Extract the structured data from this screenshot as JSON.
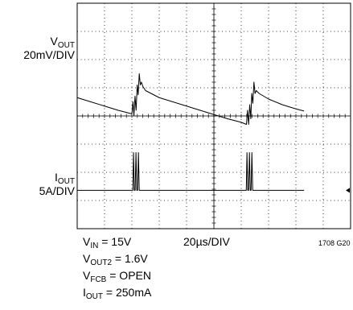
{
  "chart_data": {
    "type": "line",
    "title": "",
    "xlabel": "",
    "ylabel": "",
    "grid": true,
    "time_per_div": "20µs/DIV",
    "horizontal_divisions": 10,
    "vertical_divisions": 8,
    "x_unit": "µs",
    "xlim": [
      0,
      200
    ],
    "series": [
      {
        "name": "V_OUT",
        "scale": "20mV/DIV",
        "unit": "mV",
        "ylim": [
          -80,
          80
        ],
        "label_main": "V",
        "label_sub": "OUT",
        "label_scale": "20mV/DIV",
        "x": [
          0,
          10,
          20,
          30,
          40,
          40.8,
          41.5,
          42.3,
          43.1,
          43.9,
          44.6,
          45.4,
          46.2,
          47,
          48,
          50,
          60,
          70,
          80,
          90,
          100,
          110,
          120,
          123.8,
          124.6,
          125.4,
          126.2,
          127,
          127.7,
          128.5,
          129.3,
          130.1,
          131,
          133,
          140,
          150,
          160,
          166
        ],
        "y": [
          13,
          10,
          7,
          4,
          1.5,
          10,
          0,
          14,
          4,
          22,
          15,
          30,
          22,
          24,
          21,
          18,
          13,
          10,
          7,
          4,
          1,
          -2,
          -4.5,
          -6,
          4,
          -6,
          8,
          -2,
          16,
          9,
          24,
          16,
          18,
          16,
          12,
          8,
          5,
          3.5
        ]
      },
      {
        "name": "I_OUT",
        "scale": "5A/DIV",
        "unit": "A",
        "ylim": [
          -20,
          20
        ],
        "label_main": "I",
        "label_sub": "OUT",
        "label_scale": "5A/DIV",
        "x": [
          0,
          40.7,
          41.2,
          41.8,
          42.4,
          43.0,
          43.6,
          44.2,
          44.8,
          45.4,
          46.0,
          46.6,
          47.2,
          120,
          123.7,
          124.2,
          124.8,
          125.4,
          126.0,
          126.6,
          127.2,
          127.8,
          128.4,
          129.0,
          129.6,
          130.2,
          166
        ],
        "y": [
          -13.2,
          -13.2,
          -6.5,
          -13.2,
          -13.2,
          -6.5,
          -13.2,
          -13.2,
          -6.5,
          -13.2,
          -13.2,
          -13.2,
          -13.2,
          -13.2,
          -13.2,
          -6.5,
          -13.2,
          -13.2,
          -6.5,
          -13.2,
          -13.2,
          -6.5,
          -13.2,
          -13.2,
          -13.2,
          -13.2,
          -13.2
        ]
      }
    ],
    "conditions": {
      "vin": {
        "main": "V",
        "sub": "IN",
        "value": " = 15V"
      },
      "vout2": {
        "main": "V",
        "sub": "OUT2",
        "value": " = 1.6V"
      },
      "vfcb": {
        "main": "V",
        "sub": "FCB",
        "value": " = OPEN"
      },
      "iout": {
        "main": "I",
        "sub": "OUT",
        "value": " = 250mA"
      }
    },
    "figure_code": "1708 G20"
  }
}
